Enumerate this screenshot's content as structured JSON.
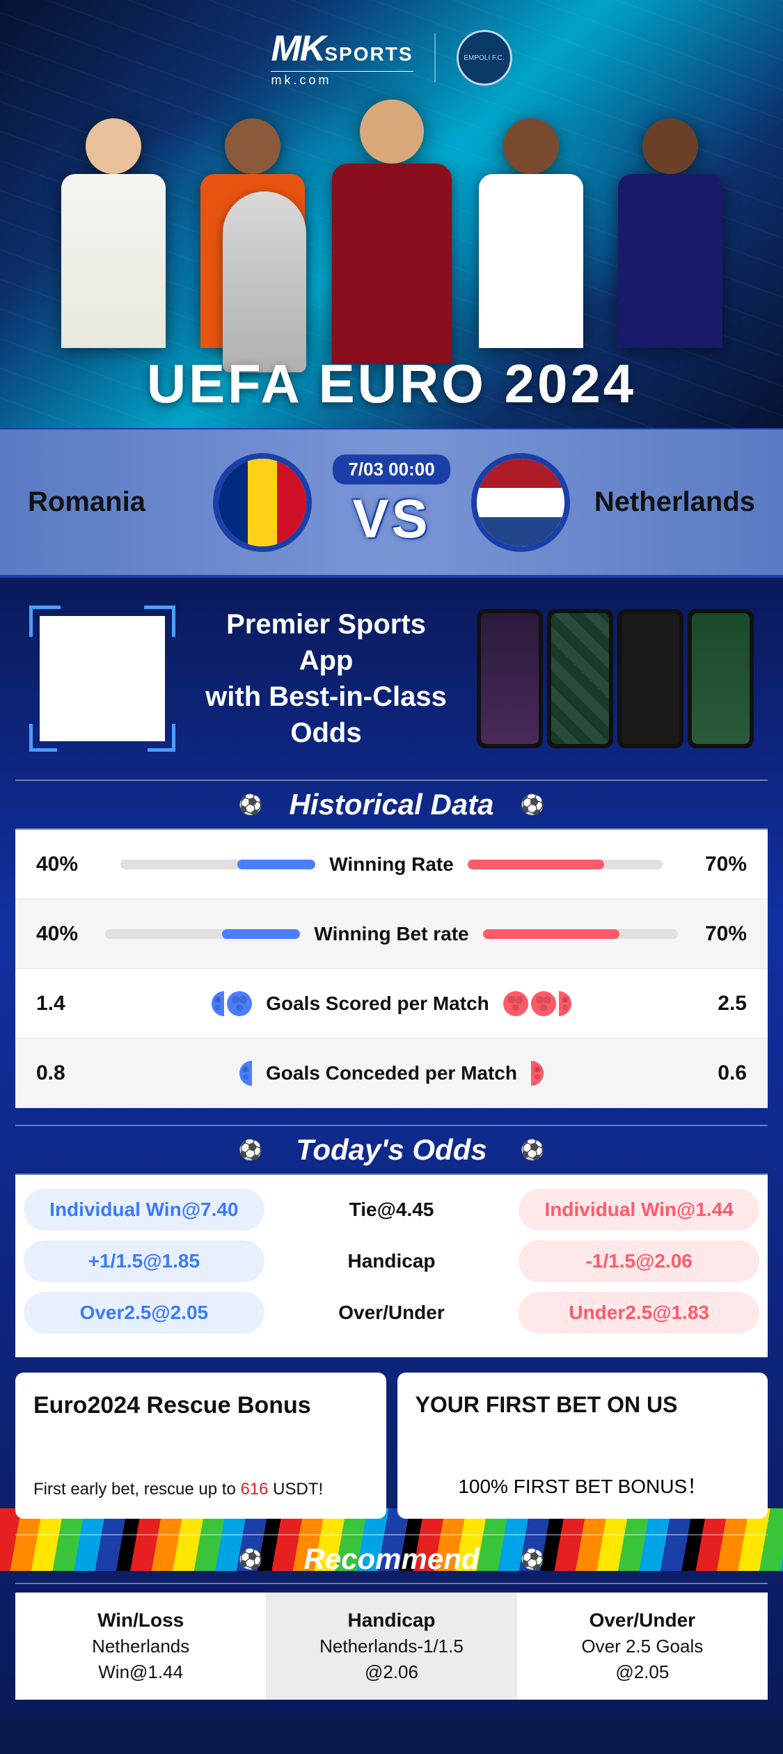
{
  "logo": {
    "brand_mk": "MK",
    "brand_sports": "SPORTS",
    "brand_sub": "mk.com",
    "badge_text": "EMPOLI F.C."
  },
  "hero": {
    "title": "UEFA EURO 2024"
  },
  "match": {
    "team_left": "Romania",
    "team_right": "Netherlands",
    "time": "7/03 00:00",
    "vs": "VS"
  },
  "promo": {
    "line1": "Premier Sports App",
    "line2": "with Best-in-Class Odds"
  },
  "historical": {
    "title": "Historical Data",
    "rows": [
      {
        "label": "Winning Rate",
        "left_val": "40%",
        "right_val": "70%",
        "left_pct": 40,
        "right_pct": 70,
        "type": "bar"
      },
      {
        "label": "Winning Bet rate",
        "left_val": "40%",
        "right_val": "70%",
        "left_pct": 40,
        "right_pct": 70,
        "type": "bar"
      },
      {
        "label": "Goals Scored per Match",
        "left_val": "1.4",
        "right_val": "2.5",
        "left_balls": 1.4,
        "right_balls": 2.5,
        "type": "balls"
      },
      {
        "label": "Goals Conceded per Match",
        "left_val": "0.8",
        "right_val": "0.6",
        "left_balls": 0.8,
        "right_balls": 0.6,
        "type": "balls"
      }
    ]
  },
  "odds": {
    "title": "Today's Odds",
    "rows": [
      {
        "left": "Individual Win@7.40",
        "mid": "Tie@4.45",
        "right": "Individual Win@1.44"
      },
      {
        "left": "+1/1.5@1.85",
        "mid": "Handicap",
        "right": "-1/1.5@2.06"
      },
      {
        "left": "Over2.5@2.05",
        "mid": "Over/Under",
        "right": "Under2.5@1.83"
      }
    ]
  },
  "bonus": {
    "card1_title": "Euro2024 Rescue Bonus",
    "card1_sub_pre": "First early bet, rescue up to ",
    "card1_sub_hl": "616",
    "card1_sub_post": " USDT!",
    "card2_title": "YOUR FIRST BET ON US",
    "card2_sub_hl": "100%",
    "card2_sub_post": " FIRST BET BONUS！"
  },
  "recommend": {
    "title": "Recommend",
    "cols": [
      {
        "h": "Win/Loss",
        "v1": "Netherlands",
        "v2": "Win@1.44"
      },
      {
        "h": "Handicap",
        "v1": "Netherlands-1/1.5",
        "v2": "@2.06"
      },
      {
        "h": "Over/Under",
        "v1": "Over 2.5 Goals",
        "v2": "@2.05"
      }
    ]
  },
  "colors": {
    "primary_blue": "#1a3fa8",
    "accent_blue": "#4a7eff",
    "accent_red": "#ff5a6a",
    "highlight_red": "#e62020"
  }
}
